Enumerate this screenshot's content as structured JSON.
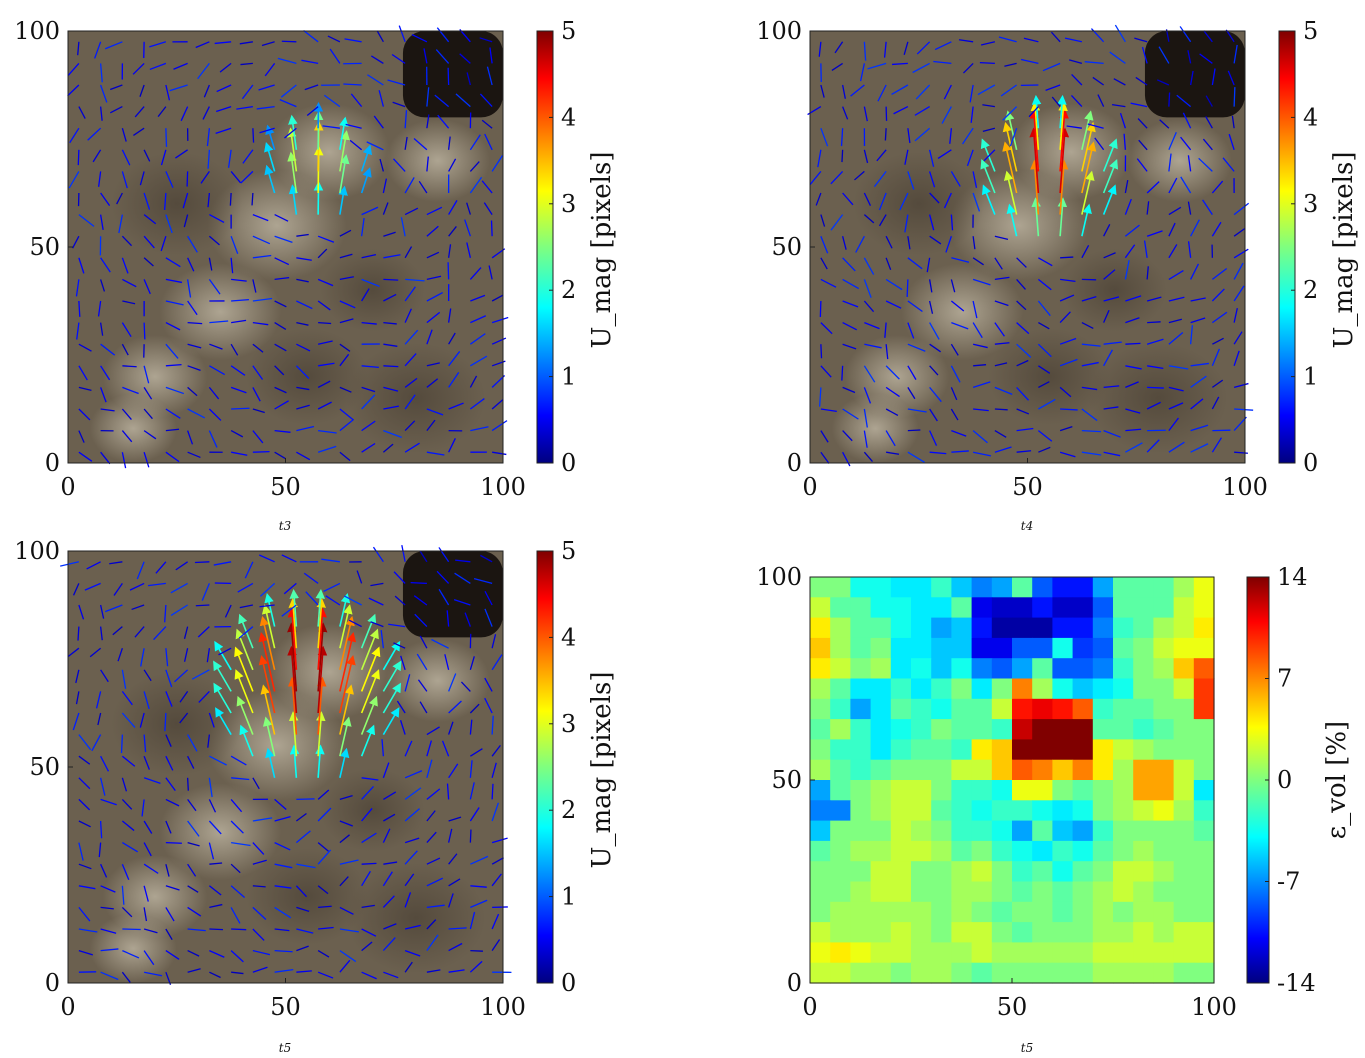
{
  "figure": {
    "panels": [
      {
        "id": "p1",
        "caption": "t3",
        "colorbar_label": "U_mag [pixels]"
      },
      {
        "id": "p2",
        "caption": "t4",
        "colorbar_label": "U_mag [pixels]"
      },
      {
        "id": "p3",
        "caption": "t5",
        "colorbar_label": "U_mag [pixels]"
      },
      {
        "id": "p4",
        "caption": "t5",
        "colorbar_label": "ε_vol [%]"
      }
    ]
  },
  "chart_data": [
    {
      "type": "quiver",
      "caption": "t3",
      "background": "grayscale photograph",
      "xlim": [
        0,
        100
      ],
      "ylim": [
        0,
        100
      ],
      "xticks": [
        "0",
        "50",
        "100"
      ],
      "yticks": [
        "0",
        "50",
        "100"
      ],
      "colorbar": {
        "label": "U_mag [pixels]",
        "range": [
          0,
          5
        ],
        "ticks": [
          "0",
          "1",
          "2",
          "3",
          "4",
          "5"
        ],
        "colormap": "jet"
      },
      "vector_field": {
        "grid_spacing": 5,
        "center": [
          57,
          66
        ],
        "peak_magnitude": 3.4,
        "spread": 7,
        "background_magnitude": 0.6
      }
    },
    {
      "type": "quiver",
      "caption": "t4",
      "background": "grayscale photograph",
      "xlim": [
        0,
        100
      ],
      "ylim": [
        0,
        100
      ],
      "xticks": [
        "0",
        "50",
        "100"
      ],
      "yticks": [
        "0",
        "50",
        "100"
      ],
      "colorbar": {
        "label": "U_mag [pixels]",
        "range": [
          0,
          5
        ],
        "ticks": [
          "0",
          "1",
          "2",
          "3",
          "4",
          "5"
        ],
        "colormap": "jet"
      },
      "vector_field": {
        "grid_spacing": 5,
        "center": [
          55,
          64
        ],
        "peak_magnitude": 4.8,
        "spread": 9,
        "background_magnitude": 0.6
      }
    },
    {
      "type": "quiver",
      "caption": "t5",
      "background": "grayscale photograph",
      "xlim": [
        0,
        100
      ],
      "ylim": [
        0,
        100
      ],
      "xticks": [
        "0",
        "50",
        "100"
      ],
      "yticks": [
        "0",
        "50",
        "100"
      ],
      "colorbar": {
        "label": "U_mag [pixels]",
        "range": [
          0,
          5
        ],
        "ticks": [
          "0",
          "1",
          "2",
          "3",
          "4",
          "5"
        ],
        "colormap": "jet"
      },
      "vector_field": {
        "grid_spacing": 5,
        "center": [
          55,
          66
        ],
        "peak_magnitude": 5.0,
        "spread": 12,
        "background_magnitude": 0.6
      }
    },
    {
      "type": "heatmap",
      "caption": "t5",
      "xlim": [
        0,
        100
      ],
      "ylim": [
        0,
        100
      ],
      "xticks": [
        "0",
        "50",
        "100"
      ],
      "yticks": [
        "0",
        "50",
        "100"
      ],
      "colorbar": {
        "label": "ε_vol [%]",
        "range": [
          -14,
          14
        ],
        "ticks": [
          "-14",
          "-7",
          "0",
          "7",
          "14"
        ],
        "colormap": "jet"
      },
      "rows_top_to_bottom": [
        [
          0,
          0,
          -3,
          -3,
          -4,
          -4,
          -2,
          -5,
          -7,
          -6,
          -1,
          -8,
          -10,
          -10,
          -6,
          -1,
          -1,
          -1,
          1,
          3
        ],
        [
          2,
          -1,
          -1,
          -3,
          -3,
          -4,
          -4,
          -1,
          -11,
          -12,
          -12,
          -10,
          -12,
          -12,
          -8,
          -1,
          -1,
          -1,
          2,
          3
        ],
        [
          4,
          1,
          -1,
          -1,
          -3,
          -4,
          -6,
          -5,
          -10,
          -13,
          -13,
          -13,
          -10,
          -10,
          -7,
          -2,
          -1,
          1,
          2,
          4
        ],
        [
          5,
          1,
          -1,
          0,
          -4,
          -4,
          -5,
          -5,
          -11,
          -11,
          -8,
          -8,
          -3,
          -9,
          -8,
          -1,
          0,
          2,
          3,
          3
        ],
        [
          4,
          2,
          0,
          1,
          -4,
          -3,
          -5,
          -3,
          -7,
          -8,
          -6,
          -1,
          -8,
          -8,
          -7,
          -2,
          0,
          1,
          5,
          8
        ],
        [
          1,
          -1,
          -4,
          -4,
          -2,
          -4,
          -2,
          0,
          -4,
          0,
          7,
          1,
          -3,
          -5,
          -4,
          -3,
          0,
          0,
          2,
          9
        ],
        [
          0,
          -2,
          -6,
          -4,
          -1,
          -2,
          -3,
          -1,
          -1,
          2,
          10,
          11,
          10,
          8,
          -2,
          -1,
          -1,
          0,
          0,
          9
        ],
        [
          -1,
          1,
          -2,
          -4,
          -3,
          -2,
          0,
          -1,
          -1,
          -2,
          12,
          14,
          14,
          14,
          -1,
          -1,
          -2,
          -1,
          0,
          0
        ],
        [
          0,
          -2,
          -2,
          -4,
          -2,
          -1,
          -1,
          -2,
          4,
          5,
          14,
          14,
          14,
          14,
          4,
          2,
          1,
          0,
          0,
          0
        ],
        [
          1,
          -1,
          -2,
          -1,
          0,
          0,
          0,
          2,
          2,
          5,
          8,
          7,
          5,
          7,
          4,
          1,
          6,
          6,
          2,
          0
        ],
        [
          -6,
          -1,
          0,
          1,
          2,
          2,
          0,
          -2,
          -2,
          -3,
          3,
          3,
          0,
          -1,
          0,
          1,
          6,
          6,
          2,
          -4
        ],
        [
          -7,
          -7,
          0,
          1,
          2,
          2,
          -1,
          -2,
          -3,
          -2,
          -2,
          -3,
          -4,
          -3,
          0,
          1,
          2,
          3,
          1,
          -2
        ],
        [
          -5,
          0,
          0,
          0,
          2,
          1,
          0,
          -2,
          -2,
          -3,
          -6,
          -1,
          -5,
          -6,
          -2,
          0,
          0,
          0,
          0,
          -1
        ],
        [
          -1,
          0,
          1,
          1,
          2,
          2,
          1,
          -1,
          0,
          -2,
          -3,
          -4,
          -2,
          -3,
          -1,
          0,
          1,
          0,
          0,
          0
        ],
        [
          0,
          0,
          0,
          2,
          2,
          0,
          0,
          1,
          2,
          0,
          -2,
          -1,
          -3,
          -1,
          0,
          2,
          2,
          1,
          0,
          0
        ],
        [
          0,
          0,
          1,
          2,
          2,
          0,
          0,
          1,
          1,
          0,
          -1,
          0,
          -1,
          0,
          1,
          2,
          1,
          0,
          0,
          0
        ],
        [
          0,
          1,
          1,
          1,
          1,
          1,
          0,
          1,
          0,
          -1,
          0,
          0,
          -1,
          0,
          1,
          0,
          1,
          1,
          0,
          0
        ],
        [
          2,
          1,
          1,
          1,
          2,
          1,
          0,
          2,
          2,
          0,
          -1,
          0,
          0,
          0,
          1,
          1,
          2,
          1,
          2,
          2
        ],
        [
          3,
          4,
          3,
          2,
          2,
          1,
          1,
          1,
          2,
          1,
          1,
          1,
          1,
          1,
          2,
          2,
          2,
          2,
          2,
          2
        ],
        [
          2,
          2,
          1,
          1,
          0,
          1,
          1,
          0,
          -1,
          0,
          0,
          0,
          0,
          0,
          1,
          1,
          1,
          1,
          0,
          0
        ]
      ]
    }
  ]
}
